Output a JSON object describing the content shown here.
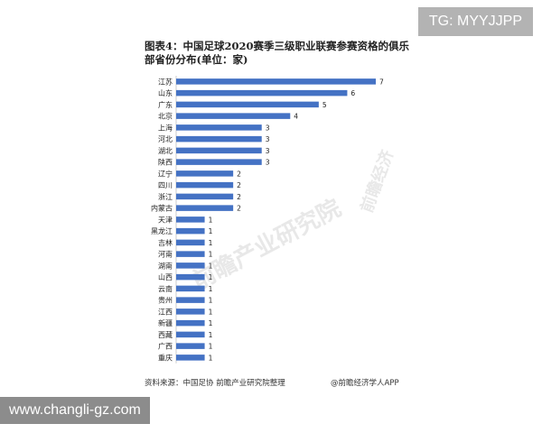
{
  "badges": {
    "top_right": "TG: MYYJJPP",
    "bottom_left": "www.changli-gz.com"
  },
  "title": "图表4：中国足球2020赛季三级职业联赛参赛资格的俱乐部省份分布(单位：家)",
  "source": "资料来源：中国足协 前瞻产业研究院整理",
  "brand": "@前瞻经济学人APP",
  "watermark": {
    "main": "前瞻产业研究院",
    "side": "前瞻经济"
  },
  "colors": {
    "bar": "#4472c4",
    "text": "#222222"
  },
  "chart_data": {
    "type": "bar",
    "orientation": "horizontal",
    "categories": [
      "江苏",
      "山东",
      "广东",
      "北京",
      "上海",
      "河北",
      "湖北",
      "陕西",
      "辽宁",
      "四川",
      "浙江",
      "内蒙古",
      "天津",
      "黑龙江",
      "吉林",
      "河南",
      "湖南",
      "山西",
      "云南",
      "贵州",
      "江西",
      "新疆",
      "西藏",
      "广西",
      "重庆"
    ],
    "values": [
      7,
      6,
      5,
      4,
      3,
      3,
      3,
      3,
      2,
      2,
      2,
      2,
      1,
      1,
      1,
      1,
      1,
      1,
      1,
      1,
      1,
      1,
      1,
      1,
      1
    ],
    "xlim": [
      0,
      7
    ],
    "grid": false,
    "legend": "none",
    "data_labels": true
  }
}
